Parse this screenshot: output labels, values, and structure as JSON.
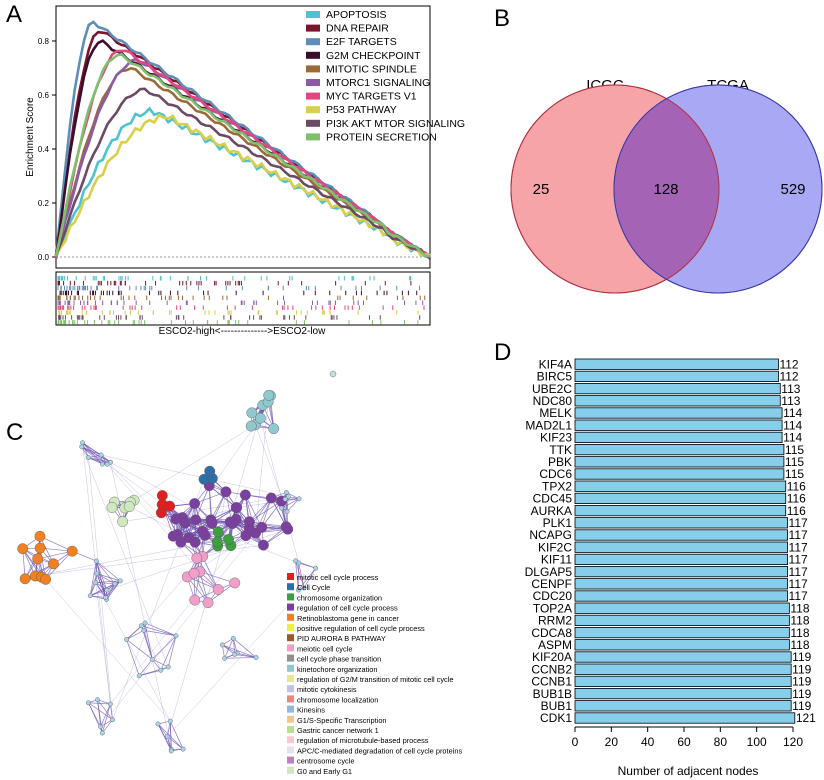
{
  "panels": {
    "A": "A",
    "B": "B",
    "C": "C",
    "D": "D"
  },
  "gsea": {
    "ylabel": "Enrichment Score",
    "yticks": [
      "0.0",
      "0.2",
      "0.4",
      "0.6",
      "0.8"
    ],
    "xlabel": "ESCO2-high<-------------->ESCO2-low",
    "series": [
      {
        "name": "APOPTOSIS",
        "color": "#4dc3cf",
        "peak": 0.54
      },
      {
        "name": "DNA  REPAIR",
        "color": "#7a1530",
        "peak": 0.84
      },
      {
        "name": "E2F  TARGETS",
        "color": "#5d8db8",
        "peak": 0.87
      },
      {
        "name": "G2M  CHECKPOINT",
        "color": "#3b0e2b",
        "peak": 0.8
      },
      {
        "name": "MITOTIC  SPINDLE",
        "color": "#9c6a3a",
        "peak": 0.7
      },
      {
        "name": "MTORC1  SIGNALING",
        "color": "#8a5ca8",
        "peak": 0.73
      },
      {
        "name": "MYC  TARGETS  V1",
        "color": "#e0487f",
        "peak": 0.77
      },
      {
        "name": "P53  PATHWAY",
        "color": "#d8cf4a",
        "peak": 0.52
      },
      {
        "name": "PI3K  AKT  MTOR  SIGNALING",
        "color": "#6b4a64",
        "peak": 0.62
      },
      {
        "name": "PROTEIN  SECRETION",
        "color": "#7fc06c",
        "peak": 0.75
      }
    ]
  },
  "venn": {
    "left_label": "ICGC",
    "right_label": "TCGA",
    "left_only": "25",
    "overlap": "128",
    "right_only": "529",
    "left_color": "#f7a4a8",
    "right_color": "#a8a8f5",
    "overlap_color": "#a463b4"
  },
  "network": {
    "legend": [
      {
        "label": "mitotic cell cycle process",
        "color": "#e02020"
      },
      {
        "label": "Cell Cycle",
        "color": "#2f6fa8"
      },
      {
        "label": "chromosome organization",
        "color": "#3ca040"
      },
      {
        "label": "regulation of cell cycle process",
        "color": "#7b3fa0"
      },
      {
        "label": "Retinoblastoma gene in cancer",
        "color": "#f08020"
      },
      {
        "label": "positive regulation of cell cycle process",
        "color": "#f0f040"
      },
      {
        "label": "PID AURORA B PATHWAY",
        "color": "#9a5a2a"
      },
      {
        "label": "meiotic cell cycle",
        "color": "#f0a0c8"
      },
      {
        "label": "cell cycle phase transition",
        "color": "#909090"
      },
      {
        "label": "kinetochore organization",
        "color": "#90c8d0"
      },
      {
        "label": "regulation of G2/M transition of mitotic cell cycle",
        "color": "#e8e890"
      },
      {
        "label": "mitotic cytokinesis",
        "color": "#c0c0e8"
      },
      {
        "label": "chromosome localization",
        "color": "#e88880"
      },
      {
        "label": "Kinesins",
        "color": "#90b8e0"
      },
      {
        "label": "G1/S-Specific Transcription",
        "color": "#f0c890"
      },
      {
        "label": "Gastric cancer network 1",
        "color": "#b8e090"
      },
      {
        "label": "regulation of microtubule-based process",
        "color": "#f8c8d0"
      },
      {
        "label": "APC/C-mediated degradation of cell cycle proteins",
        "color": "#e8e0f0"
      },
      {
        "label": "centrosome cycle",
        "color": "#c080c0"
      },
      {
        "label": "G0 and Early G1",
        "color": "#d0e8c0"
      }
    ]
  },
  "chart_data": {
    "type": "bar",
    "orientation": "horizontal",
    "title": "",
    "xlabel": "Number of adjacent nodes",
    "ylabel": "",
    "xlim": [
      0,
      126
    ],
    "xticks": [
      "0",
      "20",
      "40",
      "60",
      "80",
      "100",
      "120"
    ],
    "bar_color": "#87ceeb",
    "categories": [
      "KIF4A",
      "BIRC5",
      "UBE2C",
      "NDC80",
      "MELK",
      "MAD2L1",
      "KIF23",
      "TTK",
      "PBK",
      "CDC6",
      "TPX2",
      "CDC45",
      "AURKA",
      "PLK1",
      "NCAPG",
      "KIF2C",
      "KIF11",
      "DLGAP5",
      "CENPF",
      "CDC20",
      "TOP2A",
      "RRM2",
      "CDCA8",
      "ASPM",
      "KIF20A",
      "CCNB2",
      "CCNB1",
      "BUB1B",
      "BUB1",
      "CDK1"
    ],
    "values": [
      112,
      112,
      113,
      113,
      114,
      114,
      114,
      115,
      115,
      115,
      116,
      116,
      116,
      117,
      117,
      117,
      117,
      117,
      117,
      117,
      118,
      118,
      118,
      118,
      119,
      119,
      119,
      119,
      119,
      121
    ],
    "value_labels": [
      "112",
      "112",
      "113",
      "113",
      "114",
      "114",
      "114",
      "115",
      "115",
      "115",
      "116",
      "116",
      "116",
      "117",
      "117",
      "117",
      "117",
      "117",
      "117",
      "117",
      "118",
      "118",
      "118",
      "118",
      "119",
      "119",
      "119",
      "119",
      "119",
      "121"
    ]
  }
}
